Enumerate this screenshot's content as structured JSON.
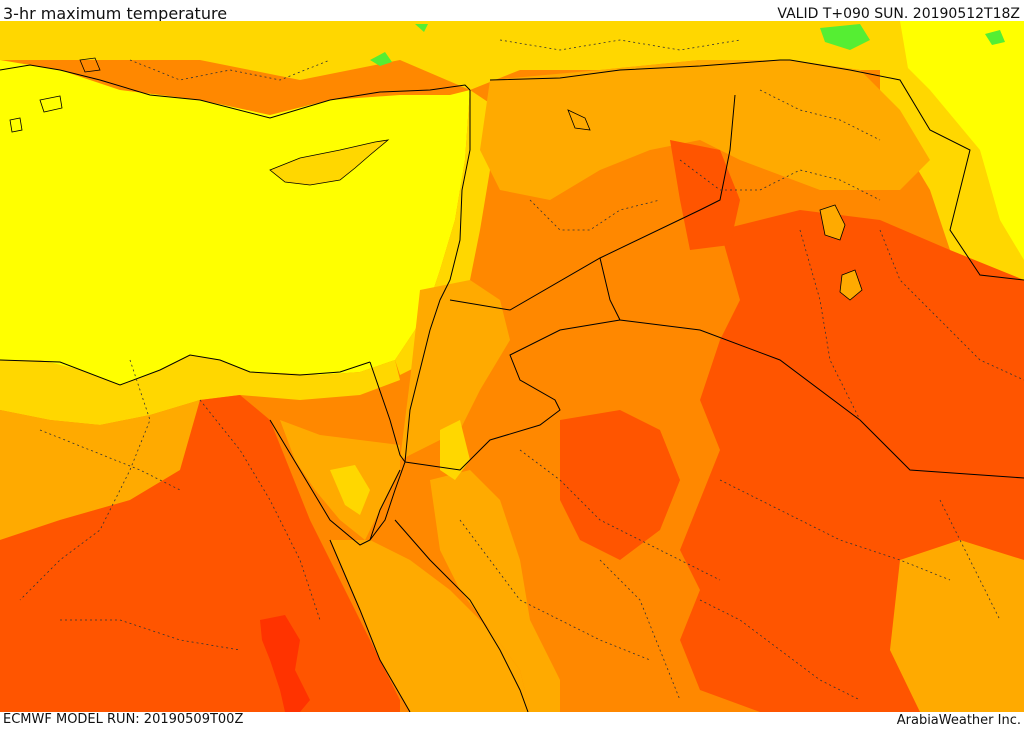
{
  "header": {
    "title": "3-hr maximum temperature",
    "valid": "VALID T+090 SUN. 20190512T18Z"
  },
  "footer": {
    "model_run": "ECMWF MODEL RUN: 20190509T00Z",
    "credit": "ArabiaWeather Inc."
  },
  "palette": {
    "yellow": "#FFFF00",
    "gold": "#FFD700",
    "amber": "#FFAA00",
    "orange": "#FF8800",
    "red_orange": "#FF5500",
    "red": "#FF3300",
    "green": "#55EE33",
    "border": "#000000"
  }
}
